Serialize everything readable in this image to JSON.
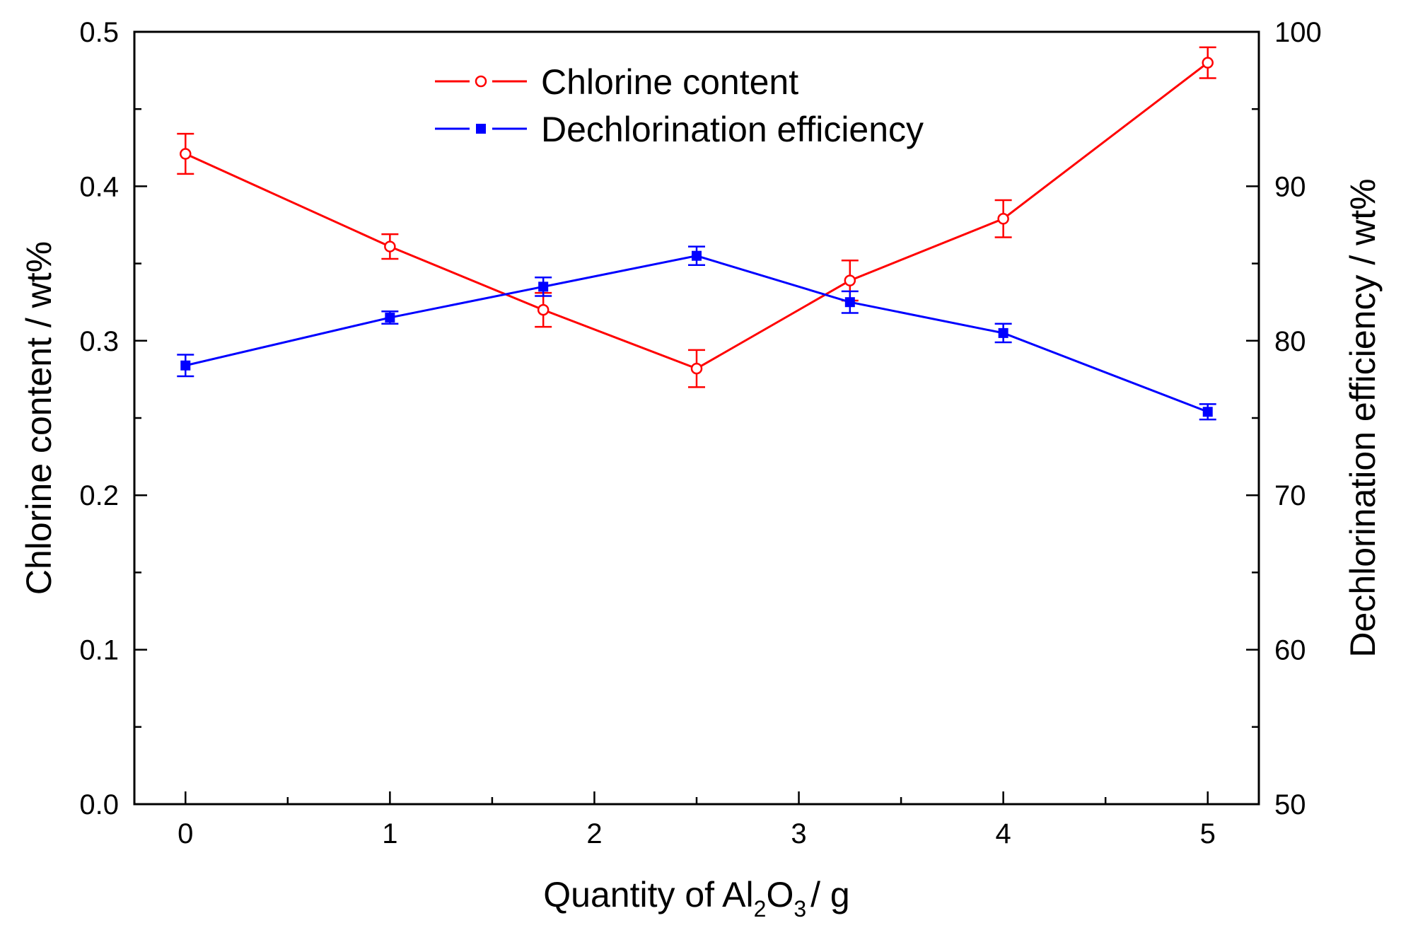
{
  "chart_data": {
    "type": "line",
    "title": "",
    "xlabel": {
      "prefix": "Quantity of Al",
      "sub1": "2",
      "mid": "O",
      "sub2": "3",
      "suffix": "/ g"
    },
    "ylabel_left": "Chlorine content / wt%",
    "ylabel_right": "Dechlorination efficiency / wt%",
    "xlim": [
      -0.25,
      5.25
    ],
    "ylim_left": [
      0.0,
      0.5
    ],
    "ylim_right": [
      50,
      100
    ],
    "x_ticks": [
      "0",
      "1",
      "2",
      "3",
      "4",
      "5"
    ],
    "y_left_ticks": [
      "0.0",
      "0.1",
      "0.2",
      "0.3",
      "0.4",
      "0.5"
    ],
    "y_right_ticks": [
      "50",
      "60",
      "70",
      "80",
      "90",
      "100"
    ],
    "x": [
      0,
      1,
      1.75,
      2.5,
      3.25,
      4,
      5
    ],
    "series": [
      {
        "name": "Chlorine content",
        "axis": "left",
        "color": "#ff0000",
        "marker": "open-circle",
        "values": [
          0.421,
          0.361,
          0.32,
          0.282,
          0.339,
          0.379,
          0.48
        ],
        "errors": [
          0.013,
          0.008,
          0.011,
          0.012,
          0.013,
          0.012,
          0.01
        ]
      },
      {
        "name": "Dechlorination efficiency",
        "axis": "right",
        "color": "#0000ff",
        "marker": "filled-square",
        "values": [
          78.4,
          81.5,
          83.5,
          85.5,
          82.5,
          80.5,
          75.4
        ],
        "errors": [
          0.7,
          0.4,
          0.6,
          0.6,
          0.7,
          0.6,
          0.5
        ]
      }
    ],
    "legend_position": "top-center"
  }
}
